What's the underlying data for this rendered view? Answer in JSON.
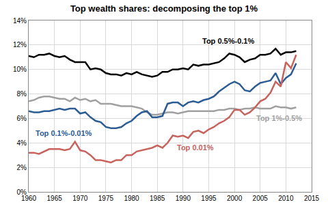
{
  "chart_data": {
    "type": "line",
    "title": "Top wealth shares: decomposing the top 1%",
    "x": [
      1960,
      1961,
      1962,
      1963,
      1964,
      1965,
      1966,
      1967,
      1968,
      1969,
      1970,
      1971,
      1972,
      1973,
      1974,
      1975,
      1976,
      1977,
      1978,
      1979,
      1980,
      1981,
      1982,
      1983,
      1984,
      1985,
      1986,
      1987,
      1988,
      1989,
      1990,
      1991,
      1992,
      1993,
      1994,
      1995,
      1996,
      1997,
      1998,
      1999,
      2000,
      2001,
      2002,
      2003,
      2004,
      2005,
      2006,
      2007,
      2008,
      2009,
      2010,
      2011,
      2012
    ],
    "series": [
      {
        "name": "Top 0.5%-0.1%",
        "color": "#000000",
        "values": [
          11.1,
          11.0,
          11.2,
          11.2,
          11.3,
          11.1,
          11.0,
          11.1,
          10.8,
          10.6,
          10.6,
          10.6,
          10.0,
          10.1,
          10.0,
          9.7,
          9.6,
          9.6,
          9.5,
          9.7,
          9.6,
          9.8,
          9.6,
          9.5,
          9.4,
          9.5,
          9.8,
          9.8,
          10.0,
          10.0,
          10.1,
          10.0,
          10.4,
          10.3,
          10.4,
          10.4,
          10.5,
          10.6,
          10.9,
          11.3,
          11.2,
          11.0,
          10.6,
          10.8,
          10.9,
          11.2,
          11.2,
          11.3,
          11.7,
          11.2,
          11.4,
          11.4,
          11.5
        ]
      },
      {
        "name": "Top 1%-0.5%",
        "color": "#a0a0a0",
        "values": [
          7.4,
          7.5,
          7.7,
          7.8,
          7.8,
          7.7,
          7.6,
          7.6,
          7.4,
          7.7,
          7.5,
          7.6,
          7.4,
          7.5,
          7.2,
          7.2,
          7.2,
          7.1,
          7.0,
          7.0,
          7.0,
          6.9,
          6.8,
          6.5,
          6.3,
          6.3,
          6.4,
          6.5,
          6.5,
          6.4,
          6.5,
          6.6,
          6.6,
          6.6,
          6.6,
          6.6,
          6.6,
          6.7,
          6.7,
          6.8,
          6.8,
          6.7,
          6.8,
          6.8,
          6.9,
          6.8,
          6.8,
          6.8,
          7.0,
          6.9,
          6.9,
          6.8,
          6.9
        ]
      },
      {
        "name": "Top 0.1%-0.01%",
        "color": "#2b5c94",
        "values": [
          6.6,
          6.5,
          6.5,
          6.6,
          6.6,
          6.7,
          6.8,
          6.7,
          6.8,
          6.8,
          6.4,
          6.5,
          6.1,
          5.8,
          5.7,
          5.3,
          5.2,
          5.2,
          5.3,
          5.6,
          5.8,
          6.2,
          6.5,
          6.6,
          6.1,
          6.1,
          6.2,
          7.2,
          7.3,
          7.3,
          7.0,
          7.3,
          7.4,
          7.3,
          7.5,
          7.6,
          7.8,
          8.2,
          8.5,
          8.8,
          9.0,
          8.8,
          8.3,
          8.2,
          8.6,
          8.9,
          9.0,
          9.1,
          9.7,
          8.8,
          9.3,
          9.6,
          10.5
        ]
      },
      {
        "name": "Top 0.01%",
        "color": "#c8625c",
        "values": [
          3.2,
          3.2,
          3.1,
          3.3,
          3.5,
          3.5,
          3.5,
          3.4,
          3.5,
          4.1,
          3.4,
          3.3,
          3.0,
          2.6,
          2.6,
          2.5,
          2.4,
          2.6,
          2.6,
          3.0,
          3.0,
          3.3,
          3.4,
          3.5,
          3.6,
          3.8,
          3.6,
          4.0,
          4.6,
          4.5,
          4.6,
          4.4,
          4.9,
          5.0,
          4.8,
          5.1,
          5.3,
          5.6,
          5.8,
          6.1,
          6.7,
          6.7,
          6.3,
          6.5,
          6.9,
          7.4,
          7.6,
          8.1,
          9.0,
          8.6,
          10.6,
          10.1,
          11.2
        ]
      }
    ],
    "annotations": [
      {
        "text": "Top 0.5%-0.1%",
        "x": 1993.5,
        "y": 12.3
      },
      {
        "text": "Top 0.1%-0.01%",
        "x": 1961,
        "y": 4.8
      },
      {
        "text": "Top 0.01%",
        "x": 1988.5,
        "y": 3.6
      },
      {
        "text": "Top 1%-0.5%",
        "x": 2004,
        "y": 6.0
      }
    ],
    "xlim": [
      1960,
      2015
    ],
    "xticks": [
      1960,
      1965,
      1970,
      1975,
      1980,
      1985,
      1990,
      1995,
      2000,
      2005,
      2010,
      2015
    ],
    "ylim": [
      0,
      14
    ],
    "yticks": [
      {
        "value": 0,
        "label": "0%"
      },
      {
        "value": 2,
        "label": "2%"
      },
      {
        "value": 4,
        "label": "4%"
      },
      {
        "value": 6,
        "label": "6%"
      },
      {
        "value": 8,
        "label": "8%"
      },
      {
        "value": 10,
        "label": "10%"
      },
      {
        "value": 12,
        "label": "12%"
      },
      {
        "value": 14,
        "label": "14%"
      }
    ],
    "grid": true
  }
}
